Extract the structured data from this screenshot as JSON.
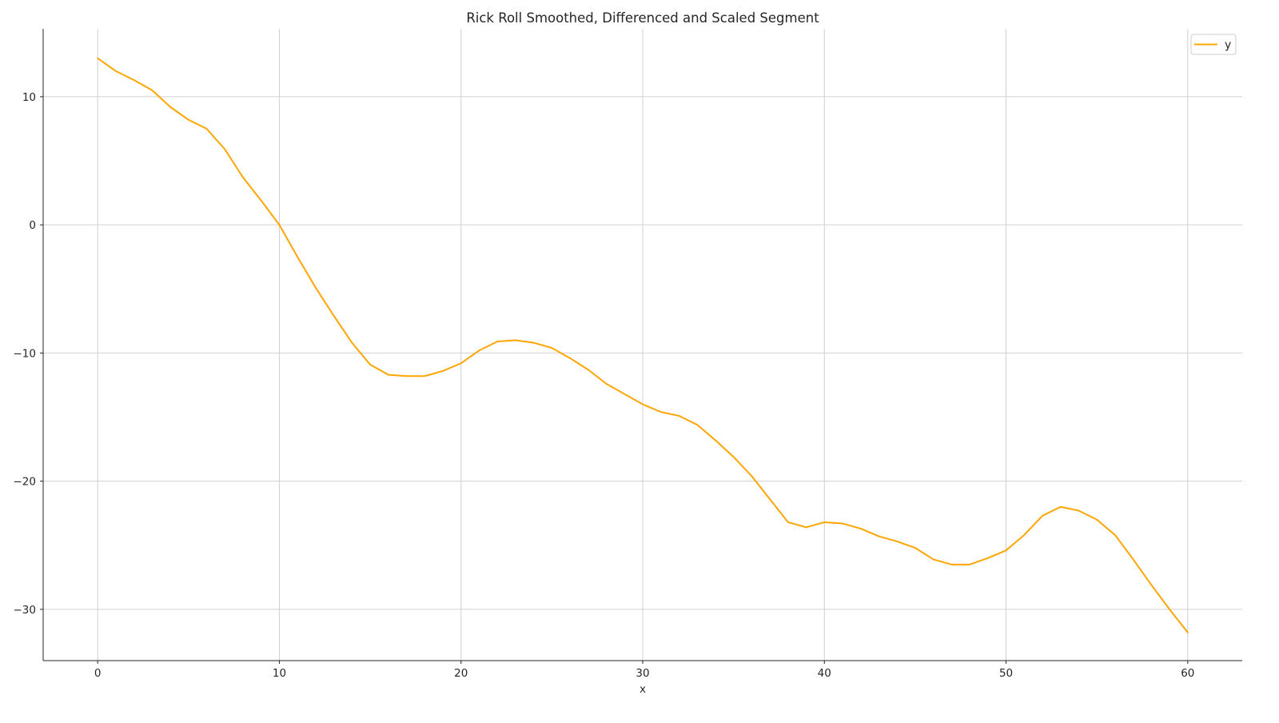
{
  "chart_data": {
    "type": "line",
    "title": "Rick Roll Smoothed, Differenced and Scaled Segment",
    "xlabel": "x",
    "ylabel": "",
    "xlim": [
      -3,
      63
    ],
    "ylim": [
      -34,
      15.3
    ],
    "xticks": [
      0,
      10,
      20,
      30,
      40,
      50,
      60
    ],
    "yticks": [
      -30,
      -20,
      -10,
      0,
      10
    ],
    "grid": true,
    "legend_position": "top-right",
    "series": [
      {
        "name": "y",
        "color": "#FFA500",
        "x": [
          0,
          1,
          2,
          3,
          4,
          5,
          6,
          7,
          8,
          9,
          10,
          11,
          12,
          13,
          14,
          15,
          16,
          17,
          18,
          19,
          20,
          21,
          22,
          23,
          24,
          25,
          26,
          27,
          28,
          29,
          30,
          31,
          32,
          33,
          34,
          35,
          36,
          37,
          38,
          39,
          40,
          41,
          42,
          43,
          44,
          45,
          46,
          47,
          48,
          49,
          50,
          51,
          52,
          53,
          54,
          55,
          56,
          57,
          58,
          59,
          60
        ],
        "values": [
          13.0,
          12.0,
          11.3,
          10.5,
          9.2,
          8.2,
          7.5,
          5.9,
          3.7,
          1.9,
          0.0,
          -2.5,
          -4.9,
          -7.1,
          -9.2,
          -10.9,
          -11.7,
          -11.8,
          -11.8,
          -11.4,
          -10.8,
          -9.8,
          -9.1,
          -9.0,
          -9.2,
          -9.6,
          -10.4,
          -11.3,
          -12.4,
          -13.2,
          -14.0,
          -14.6,
          -14.9,
          -15.6,
          -16.8,
          -18.1,
          -19.6,
          -21.4,
          -23.2,
          -23.6,
          -23.2,
          -23.3,
          -23.7,
          -24.3,
          -24.7,
          -25.2,
          -26.1,
          -26.5,
          -26.5,
          -26.0,
          -25.4,
          -24.2,
          -22.7,
          -22.0,
          -22.3,
          -23.0,
          -24.2,
          -26.1,
          -28.1,
          -30.0,
          -31.8
        ]
      }
    ]
  }
}
